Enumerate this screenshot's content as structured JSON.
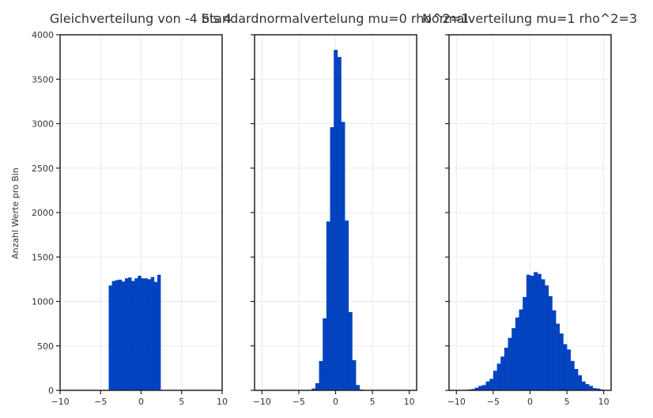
{
  "colors": {
    "bar": "#0343C0",
    "grid": "#EAEAEA",
    "frame": "#222222",
    "text": "#333333"
  },
  "ylabel": "Anzahl Werte pro Bin",
  "chart_data": [
    {
      "type": "bar",
      "title": "Gleichverteilung von -4 bis 4",
      "xlabel": "",
      "ylabel": "Anzahl Werte pro Bin",
      "xlim": [
        -10,
        10
      ],
      "ylim": [
        0,
        4000
      ],
      "grid": true,
      "x_ticks": [
        "−10",
        "−5",
        "0",
        "5",
        "10"
      ],
      "y_ticks": [
        "0",
        "500",
        "1000",
        "1500",
        "2000",
        "2500",
        "3000",
        "3500",
        "4000"
      ],
      "bin_start": -4,
      "bin_width": 0.4,
      "values": [
        1180,
        1230,
        1240,
        1245,
        1225,
        1260,
        1270,
        1230,
        1260,
        1290,
        1260,
        1260,
        1250,
        1275,
        1220,
        1300
      ]
    },
    {
      "type": "bar",
      "title": "Standardnormalvertelung mu=0 rho^2=1",
      "xlabel": "",
      "ylabel": "",
      "xlim": [
        -11,
        11
      ],
      "ylim": [
        0,
        4000
      ],
      "grid": true,
      "x_ticks": [
        "−10",
        "−5",
        "0",
        "5",
        "10"
      ],
      "bin_start": -3.25,
      "bin_width": 0.5,
      "values": [
        20,
        80,
        330,
        810,
        1900,
        2960,
        3830,
        3750,
        3020,
        1910,
        880,
        340,
        60,
        10
      ]
    },
    {
      "type": "bar",
      "title": "Normalverteilung mu=1 rho^2=3",
      "xlabel": "",
      "ylabel": "",
      "xlim": [
        -11,
        11
      ],
      "ylim": [
        0,
        4000
      ],
      "grid": true,
      "x_ticks": [
        "−10",
        "−5",
        "0",
        "5",
        "10"
      ],
      "bin_start": -9,
      "bin_width": 0.5,
      "values": [
        5,
        10,
        15,
        30,
        50,
        60,
        100,
        130,
        220,
        300,
        380,
        480,
        590,
        700,
        820,
        910,
        1050,
        1300,
        1290,
        1330,
        1310,
        1250,
        1180,
        1060,
        900,
        750,
        640,
        520,
        460,
        330,
        240,
        170,
        100,
        70,
        50,
        25,
        20,
        10
      ]
    }
  ]
}
